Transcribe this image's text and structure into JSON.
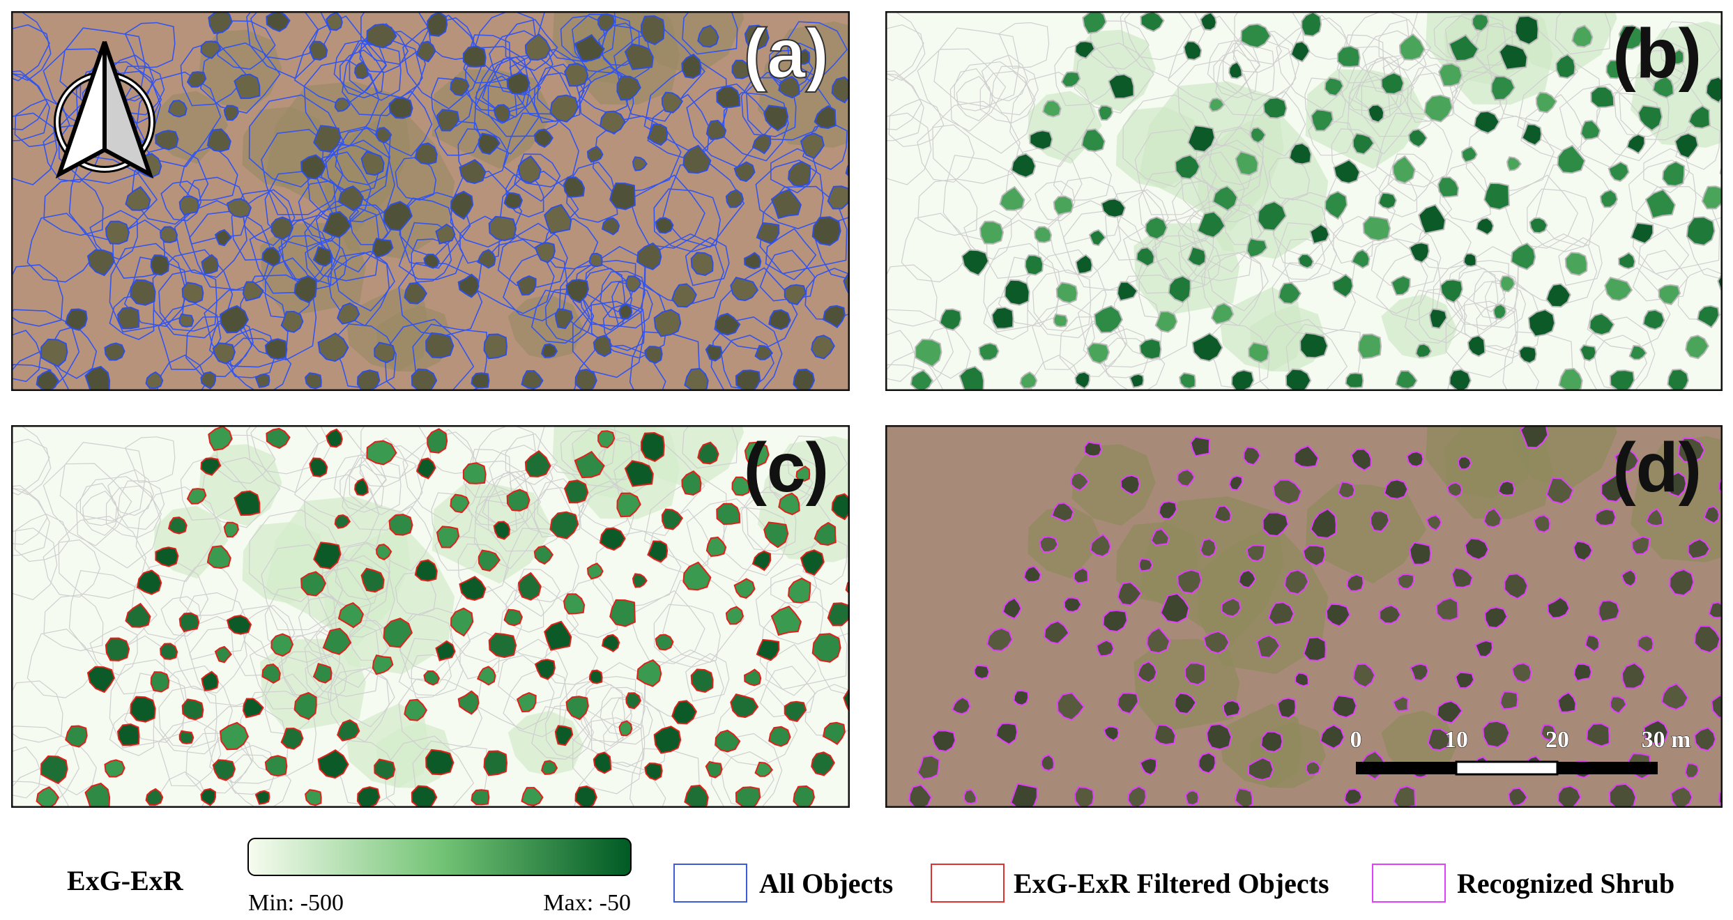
{
  "panels": [
    {
      "label": "(a)"
    },
    {
      "label": "(b)"
    },
    {
      "label": "(c)"
    },
    {
      "label": "(d)"
    }
  ],
  "scale_bar": {
    "ticks": [
      "0",
      "10",
      "20",
      "30 m"
    ]
  },
  "colorbar": {
    "title": "ExG-ExR",
    "min_label": "Min: -500",
    "max_label": "Max: -50"
  },
  "legend": {
    "items": [
      "All Objects",
      "ExG-ExR Filtered Objects",
      "Recognized Shrub"
    ]
  }
}
